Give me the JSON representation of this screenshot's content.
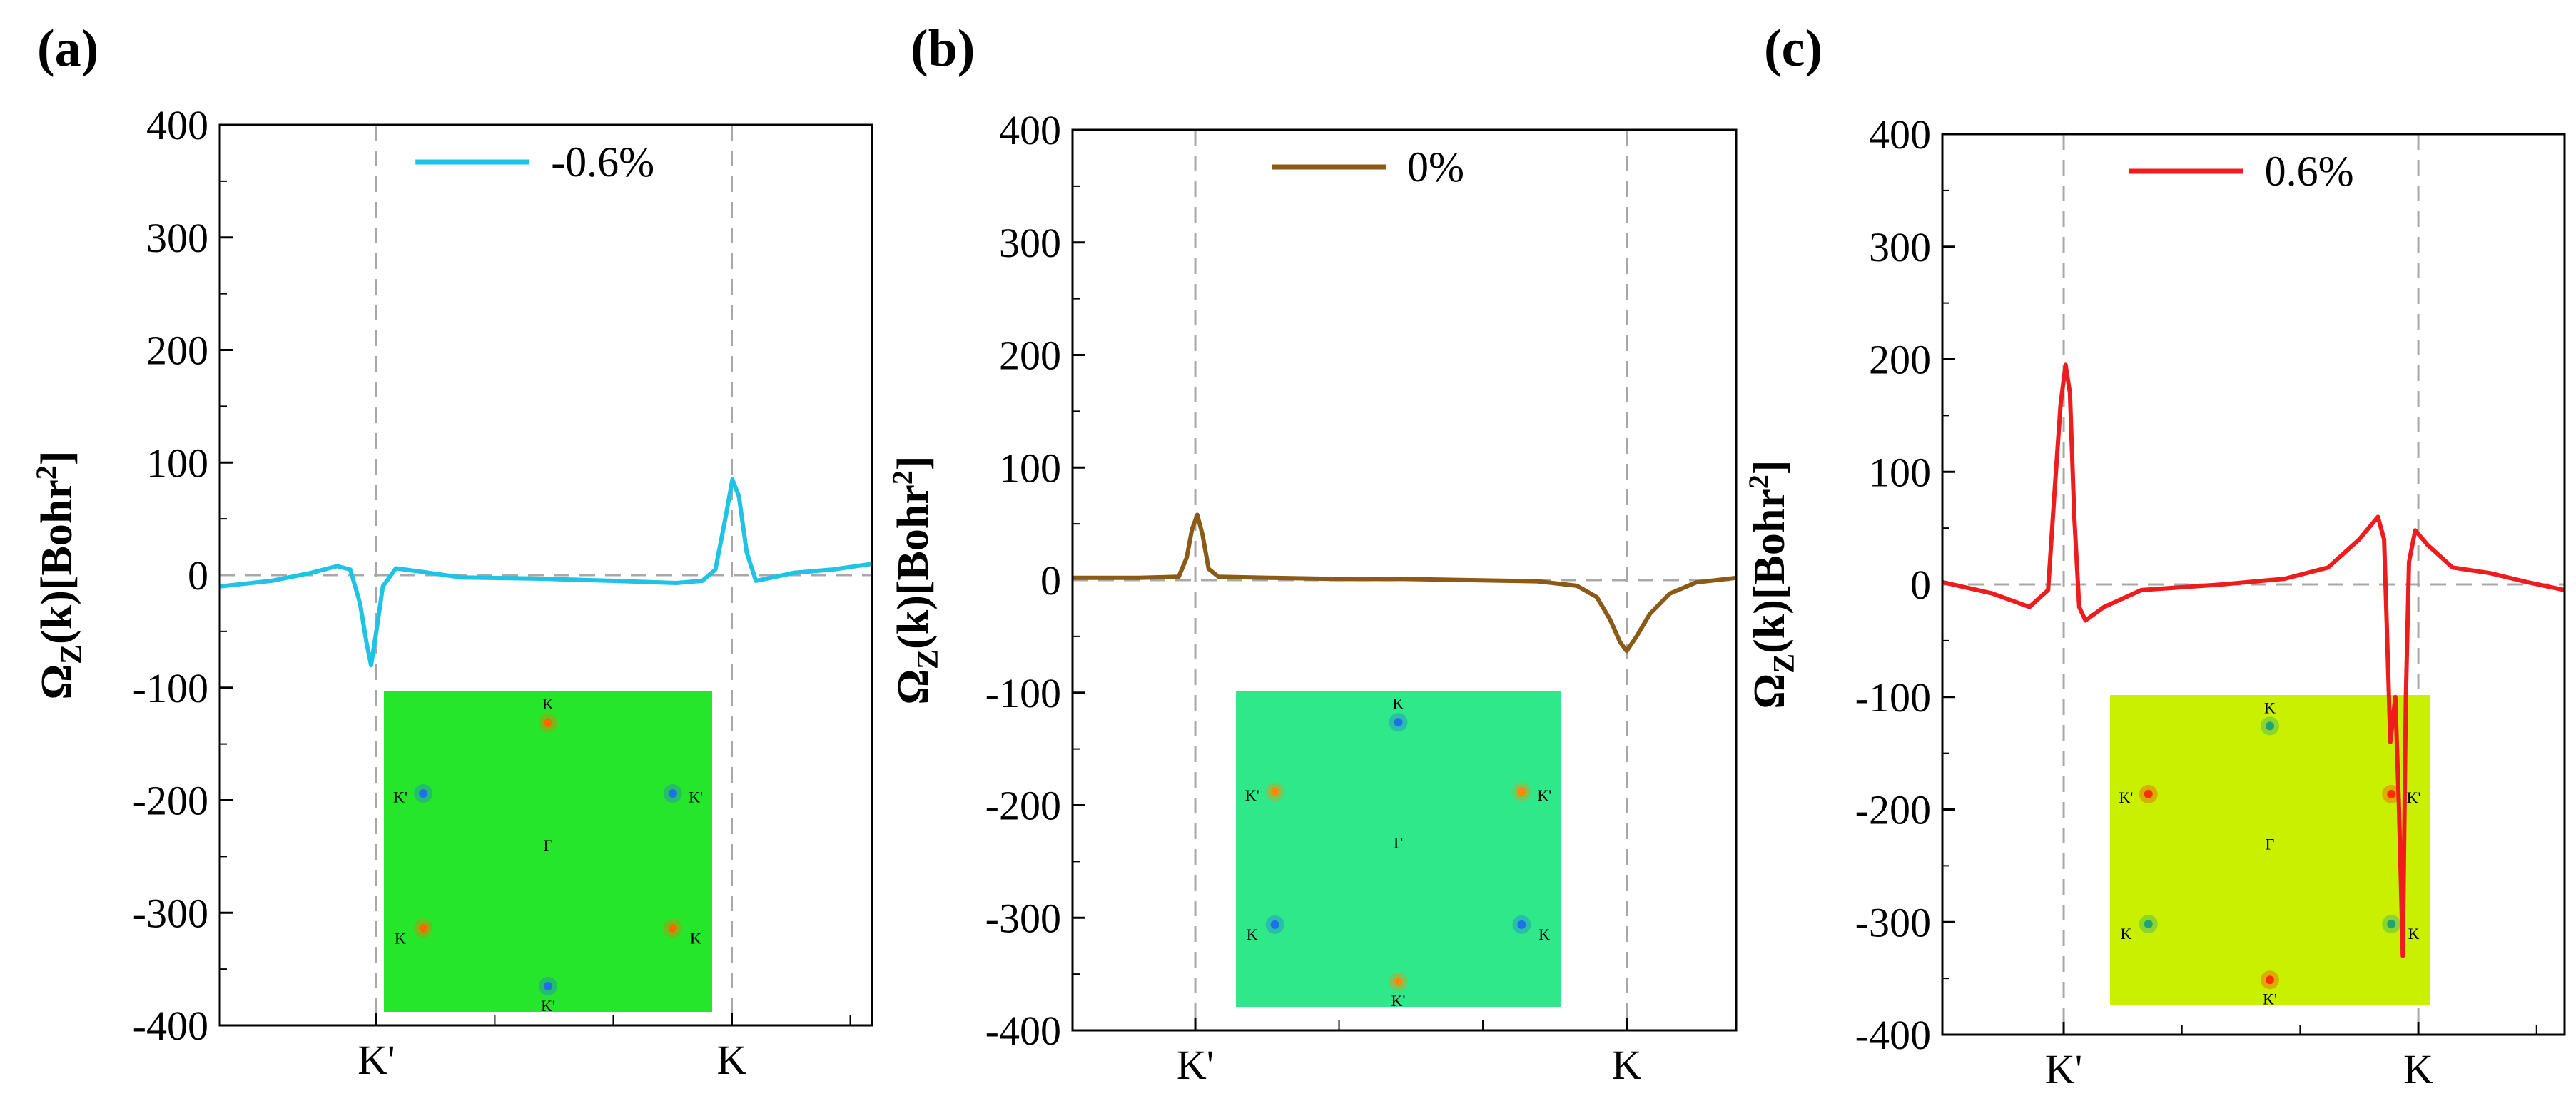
{
  "chart_data": [
    {
      "type": "line",
      "panel": "(a)",
      "series": [
        {
          "name": "-0.6%",
          "color": "#1ec3e6",
          "points": [
            [
              0,
              -10
            ],
            [
              0.08,
              -5
            ],
            [
              0.14,
              2
            ],
            [
              0.18,
              8
            ],
            [
              0.2,
              5
            ],
            [
              0.215,
              -25
            ],
            [
              0.225,
              -60
            ],
            [
              0.232,
              -80
            ],
            [
              0.24,
              -50
            ],
            [
              0.25,
              -10
            ],
            [
              0.27,
              6
            ],
            [
              0.31,
              3
            ],
            [
              0.37,
              -2
            ],
            [
              0.48,
              -3
            ],
            [
              0.6,
              -5
            ],
            [
              0.7,
              -7
            ],
            [
              0.74,
              -5
            ],
            [
              0.76,
              5
            ],
            [
              0.775,
              50
            ],
            [
              0.786,
              85
            ],
            [
              0.796,
              70
            ],
            [
              0.808,
              20
            ],
            [
              0.822,
              -5
            ],
            [
              0.84,
              -3
            ],
            [
              0.88,
              2
            ],
            [
              0.94,
              5
            ],
            [
              1,
              10
            ]
          ]
        }
      ],
      "xticks": [
        "K'",
        "K"
      ],
      "xtick_pos": [
        0.24,
        0.785
      ],
      "ylim": [
        -400,
        400
      ],
      "yticks": [
        400,
        300,
        200,
        100,
        0,
        -100,
        -200,
        -300,
        -400
      ],
      "ylabel_main": "Ω",
      "ylabel_sub": "Z",
      "ylabel_rest": "(k)[Bohr",
      "ylabel_sup": "2",
      "ylabel_end": "]",
      "inset": {
        "bg": "#25e62a",
        "labels": [
          "K",
          "K'",
          "K'",
          "Γ",
          "K",
          "K",
          "K'"
        ],
        "dot_colors": [
          "#ff6a00",
          "#1f6fe6",
          "#1f6fe6",
          "#ff6a00",
          "#ff6a00",
          "#1f6fe6"
        ]
      }
    },
    {
      "type": "line",
      "panel": "(b)",
      "series": [
        {
          "name": "0%",
          "color": "#8b5a16",
          "points": [
            [
              0,
              2
            ],
            [
              0.1,
              2
            ],
            [
              0.16,
              3
            ],
            [
              0.172,
              20
            ],
            [
              0.18,
              45
            ],
            [
              0.188,
              58
            ],
            [
              0.196,
              40
            ],
            [
              0.205,
              10
            ],
            [
              0.22,
              3
            ],
            [
              0.3,
              2
            ],
            [
              0.4,
              1
            ],
            [
              0.5,
              1
            ],
            [
              0.6,
              0
            ],
            [
              0.7,
              -1
            ],
            [
              0.76,
              -5
            ],
            [
              0.79,
              -15
            ],
            [
              0.81,
              -35
            ],
            [
              0.825,
              -55
            ],
            [
              0.835,
              -63
            ],
            [
              0.85,
              -50
            ],
            [
              0.87,
              -30
            ],
            [
              0.9,
              -12
            ],
            [
              0.94,
              -2
            ],
            [
              1,
              2
            ]
          ]
        }
      ],
      "xticks": [
        "K'",
        "K"
      ],
      "xtick_pos": [
        0.185,
        0.835
      ],
      "ylim": [
        -400,
        400
      ],
      "yticks": [
        400,
        300,
        200,
        100,
        0,
        -100,
        -200,
        -300,
        -400
      ],
      "ylabel_main": "Ω",
      "ylabel_sub": "Z",
      "ylabel_rest": "(k)[Bohr",
      "ylabel_sup": "2",
      "ylabel_end": "]",
      "inset": {
        "bg": "#2fe88a",
        "labels": [
          "K",
          "K'",
          "K'",
          "Γ",
          "K",
          "K",
          "K'"
        ],
        "dot_colors": [
          "#1f6fe6",
          "#ff8a00",
          "#ff8a00",
          "#1f6fe6",
          "#1f6fe6",
          "#ff8a00"
        ]
      }
    },
    {
      "type": "line",
      "panel": "(c)",
      "series": [
        {
          "name": "0.6%",
          "color": "#ee1c1c",
          "points": [
            [
              0,
              2
            ],
            [
              0.08,
              -8
            ],
            [
              0.14,
              -20
            ],
            [
              0.17,
              -5
            ],
            [
              0.18,
              80
            ],
            [
              0.19,
              160
            ],
            [
              0.198,
              195
            ],
            [
              0.205,
              170
            ],
            [
              0.212,
              60
            ],
            [
              0.22,
              -20
            ],
            [
              0.23,
              -32
            ],
            [
              0.26,
              -20
            ],
            [
              0.32,
              -5
            ],
            [
              0.45,
              0
            ],
            [
              0.55,
              5
            ],
            [
              0.62,
              15
            ],
            [
              0.67,
              40
            ],
            [
              0.7,
              60
            ],
            [
              0.71,
              40
            ],
            [
              0.715,
              -50
            ],
            [
              0.72,
              -140
            ],
            [
              0.728,
              -100
            ],
            [
              0.734,
              -200
            ],
            [
              0.74,
              -330
            ],
            [
              0.745,
              -100
            ],
            [
              0.75,
              20
            ],
            [
              0.76,
              48
            ],
            [
              0.78,
              35
            ],
            [
              0.82,
              15
            ],
            [
              0.88,
              10
            ],
            [
              0.94,
              2
            ],
            [
              1,
              -5
            ]
          ]
        }
      ],
      "xticks": [
        "K'",
        "K"
      ],
      "xtick_pos": [
        0.195,
        0.765
      ],
      "ylim": [
        -400,
        400
      ],
      "yticks": [
        400,
        300,
        200,
        100,
        0,
        -100,
        -200,
        -300,
        -400
      ],
      "ylabel_main": "Ω",
      "ylabel_sub": "Z",
      "ylabel_rest": "(k)[Bohr",
      "ylabel_sup": "2",
      "ylabel_end": "]",
      "inset": {
        "bg": "#c8f000",
        "labels": [
          "K",
          "K'",
          "K'",
          "Γ",
          "K",
          "K",
          "K'"
        ],
        "dot_colors": [
          "#1ea37a",
          "#ff3000",
          "#ff3000",
          "#1ea37a",
          "#1ea37a",
          "#ff3000"
        ]
      }
    }
  ]
}
